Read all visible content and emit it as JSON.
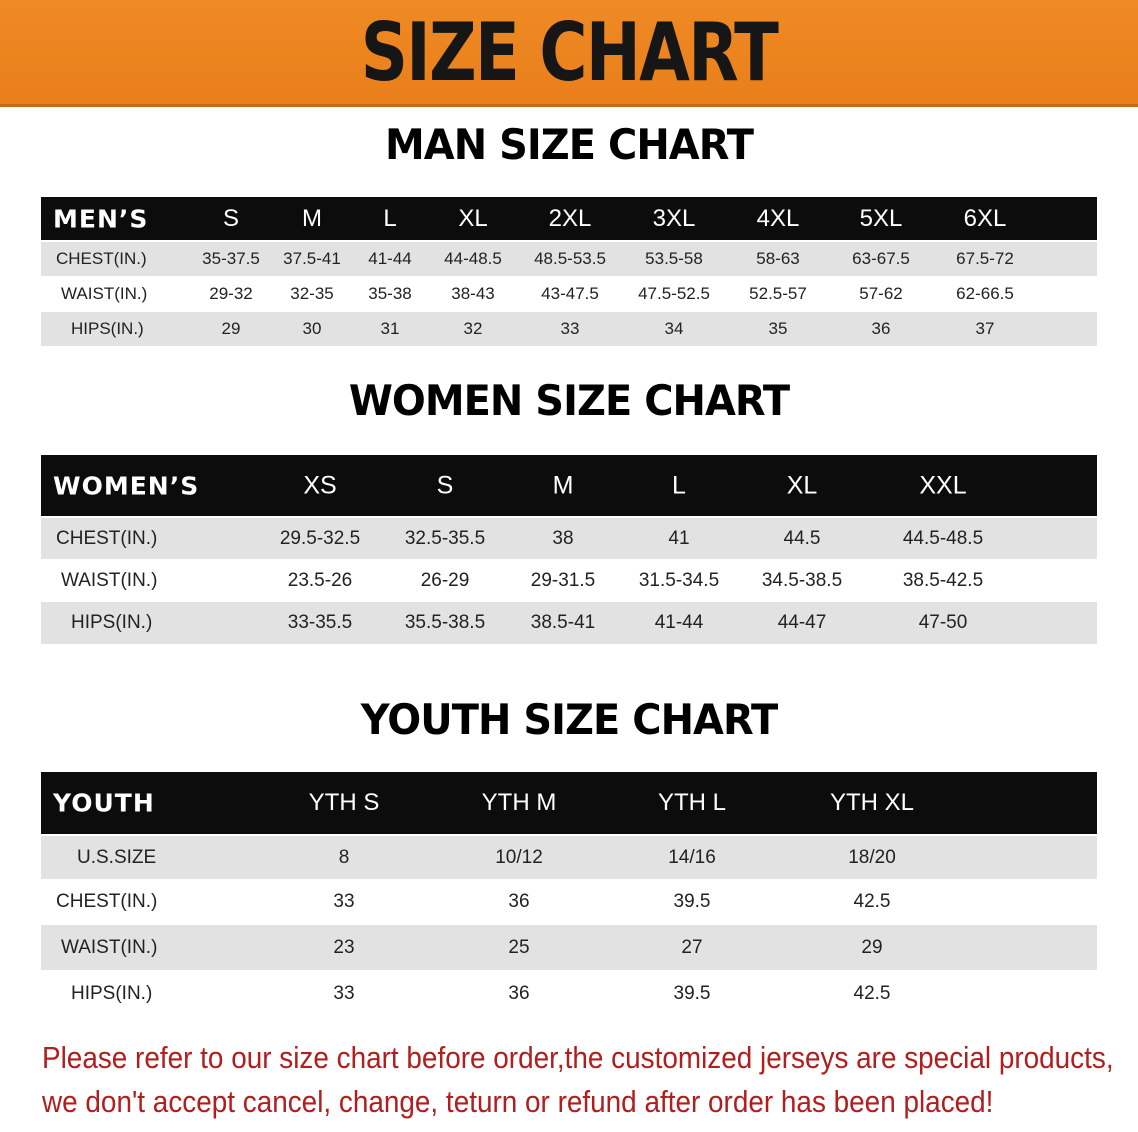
{
  "banner": {
    "title": "SIZE CHART",
    "color": "#ec841f"
  },
  "men": {
    "title": "MAN SIZE CHART",
    "header": "MEN’S",
    "sizes": [
      "S",
      "M",
      "L",
      "XL",
      "2XL",
      "3XL",
      "4XL",
      "5XL",
      "6XL"
    ],
    "rows": [
      {
        "label": "CHEST(IN.)",
        "values": [
          "35-37.5",
          "37.5-41",
          "41-44",
          "44-48.5",
          "48.5-53.5",
          "53.5-58",
          "58-63",
          "63-67.5",
          "67.5-72"
        ]
      },
      {
        "label": "WAIST(IN.)",
        "values": [
          "29-32",
          "32-35",
          "35-38",
          "38-43",
          "43-47.5",
          "47.5-52.5",
          "52.5-57",
          "57-62",
          "62-66.5"
        ]
      },
      {
        "label": "HIPS(IN.)",
        "values": [
          "29",
          "30",
          "31",
          "32",
          "33",
          "34",
          "35",
          "36",
          "37"
        ]
      }
    ]
  },
  "women": {
    "title": "WOMEN SIZE CHART",
    "header": "WOMEN’S",
    "sizes": [
      "XS",
      "S",
      "M",
      "L",
      "XL",
      "XXL"
    ],
    "rows": [
      {
        "label": "CHEST(IN.)",
        "values": [
          "29.5-32.5",
          "32.5-35.5",
          "38",
          "41",
          "44.5",
          "44.5-48.5"
        ]
      },
      {
        "label": "WAIST(IN.)",
        "values": [
          "23.5-26",
          "26-29",
          "29-31.5",
          "31.5-34.5",
          "34.5-38.5",
          "38.5-42.5"
        ]
      },
      {
        "label": "HIPS(IN.)",
        "values": [
          "33-35.5",
          "35.5-38.5",
          "38.5-41",
          "41-44",
          "44-47",
          "47-50"
        ]
      }
    ]
  },
  "youth": {
    "title": "YOUTH SIZE CHART",
    "header": "YOUTH",
    "sizes": [
      "YTH S",
      "YTH M",
      "YTH L",
      "YTH XL"
    ],
    "rows": [
      {
        "label": "U.S.SIZE",
        "values": [
          "8",
          "10/12",
          "14/16",
          "18/20"
        ]
      },
      {
        "label": "CHEST(IN.)",
        "values": [
          "33",
          "36",
          "39.5",
          "42.5"
        ]
      },
      {
        "label": "WAIST(IN.)",
        "values": [
          "23",
          "25",
          "27",
          "29"
        ]
      },
      {
        "label": "HIPS(IN.)",
        "values": [
          "33",
          "36",
          "39.5",
          "42.5"
        ]
      }
    ]
  },
  "notice": {
    "line1": "Please refer to our size chart before order,the customized jerseys are special products,",
    "line2": "we don't accept cancel, change, teturn or refund after order has been placed!",
    "color": "#b01e1e"
  }
}
